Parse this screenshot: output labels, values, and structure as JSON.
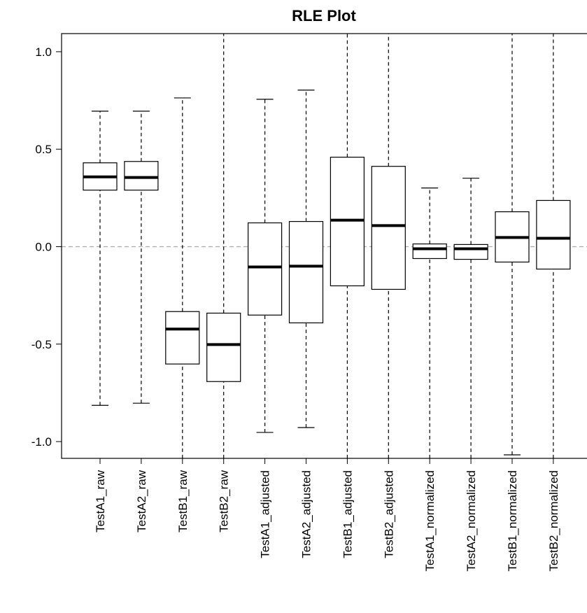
{
  "chart_data": {
    "type": "box",
    "title": "RLE Plot",
    "categories": [
      "TestA1_raw",
      "TestA2_raw",
      "TestB1_raw",
      "TestB2_raw",
      "TestA1_adjusted",
      "TestA2_adjusted",
      "TestB1_adjusted",
      "TestB2_adjusted",
      "TestA1_normalized",
      "TestA2_normalized",
      "TestB1_normalized",
      "TestB2_normalized"
    ],
    "values": [
      [
        -0.814,
        0.29,
        0.358,
        0.43,
        0.695
      ],
      [
        -0.803,
        0.29,
        0.355,
        0.437,
        0.695
      ],
      [
        -1.15,
        -0.602,
        -0.423,
        -0.333,
        0.763
      ],
      [
        -1.15,
        -0.692,
        -0.502,
        -0.341,
        1.15
      ],
      [
        -0.953,
        -0.351,
        -0.104,
        0.122,
        0.756
      ],
      [
        -0.928,
        -0.391,
        -0.1,
        0.129,
        0.803
      ],
      [
        -1.15,
        -0.201,
        0.136,
        0.459,
        1.15
      ],
      [
        -1.15,
        -0.219,
        0.108,
        0.412,
        1.15
      ],
      [
        -1.15,
        -0.061,
        -0.011,
        0.014,
        0.301
      ],
      [
        -1.15,
        -0.065,
        -0.011,
        0.011,
        0.351
      ],
      [
        -1.068,
        -0.079,
        0.047,
        0.179,
        1.15
      ],
      [
        -1.15,
        -0.115,
        0.043,
        0.237,
        1.15
      ]
    ],
    "color": "#000000",
    "hline": 0,
    "hline_color": "#aaaaaa",
    "ylim": [
      -1.086,
      1.093
    ],
    "yticks": [
      {
        "value": -1,
        "label": "-1.0"
      },
      {
        "value": -0.5,
        "label": "-0.5"
      },
      {
        "value": 0,
        "label": "0.0"
      },
      {
        "value": 0.5,
        "label": "0.5"
      },
      {
        "value": 1,
        "label": "1.0"
      }
    ]
  }
}
